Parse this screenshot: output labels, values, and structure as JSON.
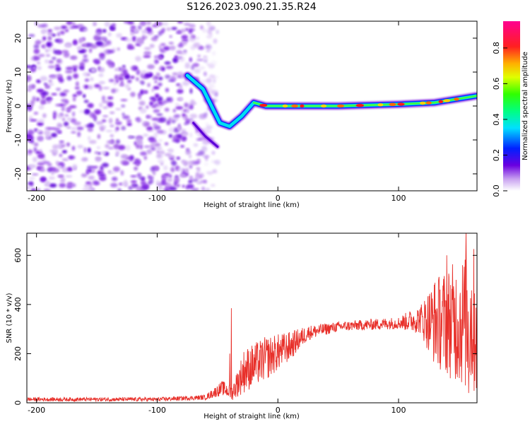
{
  "figure_title": "S126.2023.090.21.35.R24",
  "chart_data": [
    {
      "type": "heatmap",
      "title": "",
      "xlabel": "Height of straight line (km)",
      "ylabel": "Frequency (Hz)",
      "xlim": [
        -208,
        165
      ],
      "ylim": [
        -25,
        25
      ],
      "x_ticks": [
        -200,
        -100,
        0,
        100
      ],
      "y_ticks": [
        -20,
        -10,
        0,
        10,
        20
      ],
      "colorbar": {
        "label": "Normalized spectral amplitude",
        "range": [
          0,
          0.95
        ],
        "ticks": [
          0.0,
          0.2,
          0.4,
          0.6,
          0.8
        ],
        "colormap": "rainbow (white → purple → blue → cyan → green → yellow → red → magenta)"
      },
      "features": {
        "noise_region_x": [
          -208,
          -60
        ],
        "signal_trace": [
          {
            "x": -75,
            "y": 9
          },
          {
            "x": -62,
            "y": 5
          },
          {
            "x": -55,
            "y": 0
          },
          {
            "x": -48,
            "y": -5
          },
          {
            "x": -40,
            "y": -6
          },
          {
            "x": -30,
            "y": -3
          },
          {
            "x": -20,
            "y": 1
          },
          {
            "x": -10,
            "y": 0
          },
          {
            "x": 0,
            "y": 0
          },
          {
            "x": 50,
            "y": 0
          },
          {
            "x": 100,
            "y": 0.5
          },
          {
            "x": 130,
            "y": 1
          },
          {
            "x": 165,
            "y": 3
          }
        ],
        "faint_branch": [
          {
            "x": -70,
            "y": -5
          },
          {
            "x": -60,
            "y": -9
          },
          {
            "x": -50,
            "y": -12
          }
        ]
      }
    },
    {
      "type": "line",
      "title": "",
      "xlabel": "Height of straight line (km)",
      "ylabel": "SNR (10 * v/v)",
      "xlim": [
        -208,
        165
      ],
      "ylim": [
        0,
        690
      ],
      "x_ticks": [
        -200,
        -100,
        0,
        100
      ],
      "y_ticks": [
        0,
        200,
        400,
        600
      ],
      "series": [
        {
          "color": "#e8302a",
          "envelope": [
            {
              "x": -208,
              "mean": 14,
              "noise": 8
            },
            {
              "x": -100,
              "mean": 14,
              "noise": 8
            },
            {
              "x": -60,
              "mean": 22,
              "noise": 10
            },
            {
              "x": -46,
              "mean": 60,
              "noise": 30
            },
            {
              "x": -38,
              "mean": 40,
              "noise": 30
            },
            {
              "x": -28,
              "mean": 130,
              "noise": 90
            },
            {
              "x": -10,
              "mean": 180,
              "noise": 90
            },
            {
              "x": 10,
              "mean": 230,
              "noise": 60
            },
            {
              "x": 25,
              "mean": 285,
              "noise": 30
            },
            {
              "x": 50,
              "mean": 310,
              "noise": 20
            },
            {
              "x": 100,
              "mean": 325,
              "noise": 25
            },
            {
              "x": 118,
              "mean": 340,
              "noise": 60
            },
            {
              "x": 130,
              "mean": 330,
              "noise": 180
            },
            {
              "x": 165,
              "mean": 330,
              "noise": 320
            }
          ],
          "spikes": [
            {
              "x": -38.5,
              "y": 385
            },
            {
              "x": -40,
              "y": 200
            },
            {
              "x": 156,
              "y": 690
            },
            {
              "x": 140,
              "y": 600
            },
            {
              "x": 158,
              "y": 40
            }
          ]
        }
      ]
    }
  ]
}
